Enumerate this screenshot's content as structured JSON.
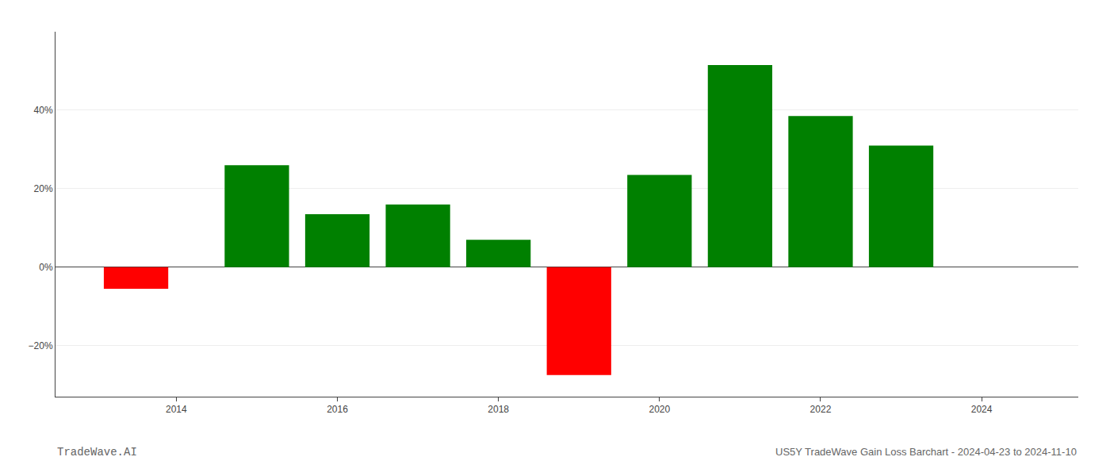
{
  "chart_data": {
    "type": "bar",
    "x": [
      2013.5,
      2015.0,
      2016.0,
      2017.0,
      2018.0,
      2019.0,
      2020.0,
      2021.0,
      2022.0,
      2023.0
    ],
    "values": [
      -5.5,
      26.0,
      13.5,
      16.0,
      7.0,
      -27.5,
      23.5,
      51.5,
      38.5,
      31.0
    ],
    "colors": [
      "#ff0000",
      "#008000",
      "#008000",
      "#008000",
      "#008000",
      "#ff0000",
      "#008000",
      "#008000",
      "#008000",
      "#008000"
    ],
    "xlim": [
      2012.5,
      2025.2
    ],
    "xticks": [
      2014,
      2016,
      2018,
      2020,
      2022,
      2024
    ],
    "ylim": [
      -33,
      60
    ],
    "yticks": [
      {
        "value": -20,
        "label": "−20%"
      },
      {
        "value": 0,
        "label": "0%"
      },
      {
        "value": 20,
        "label": "20%"
      },
      {
        "value": 40,
        "label": "40%"
      }
    ],
    "grid": true,
    "annotations": [
      "TradeWave.AI",
      "US5Y TradeWave Gain Loss Barchart - 2024-04-23 to 2024-11-10"
    ]
  }
}
